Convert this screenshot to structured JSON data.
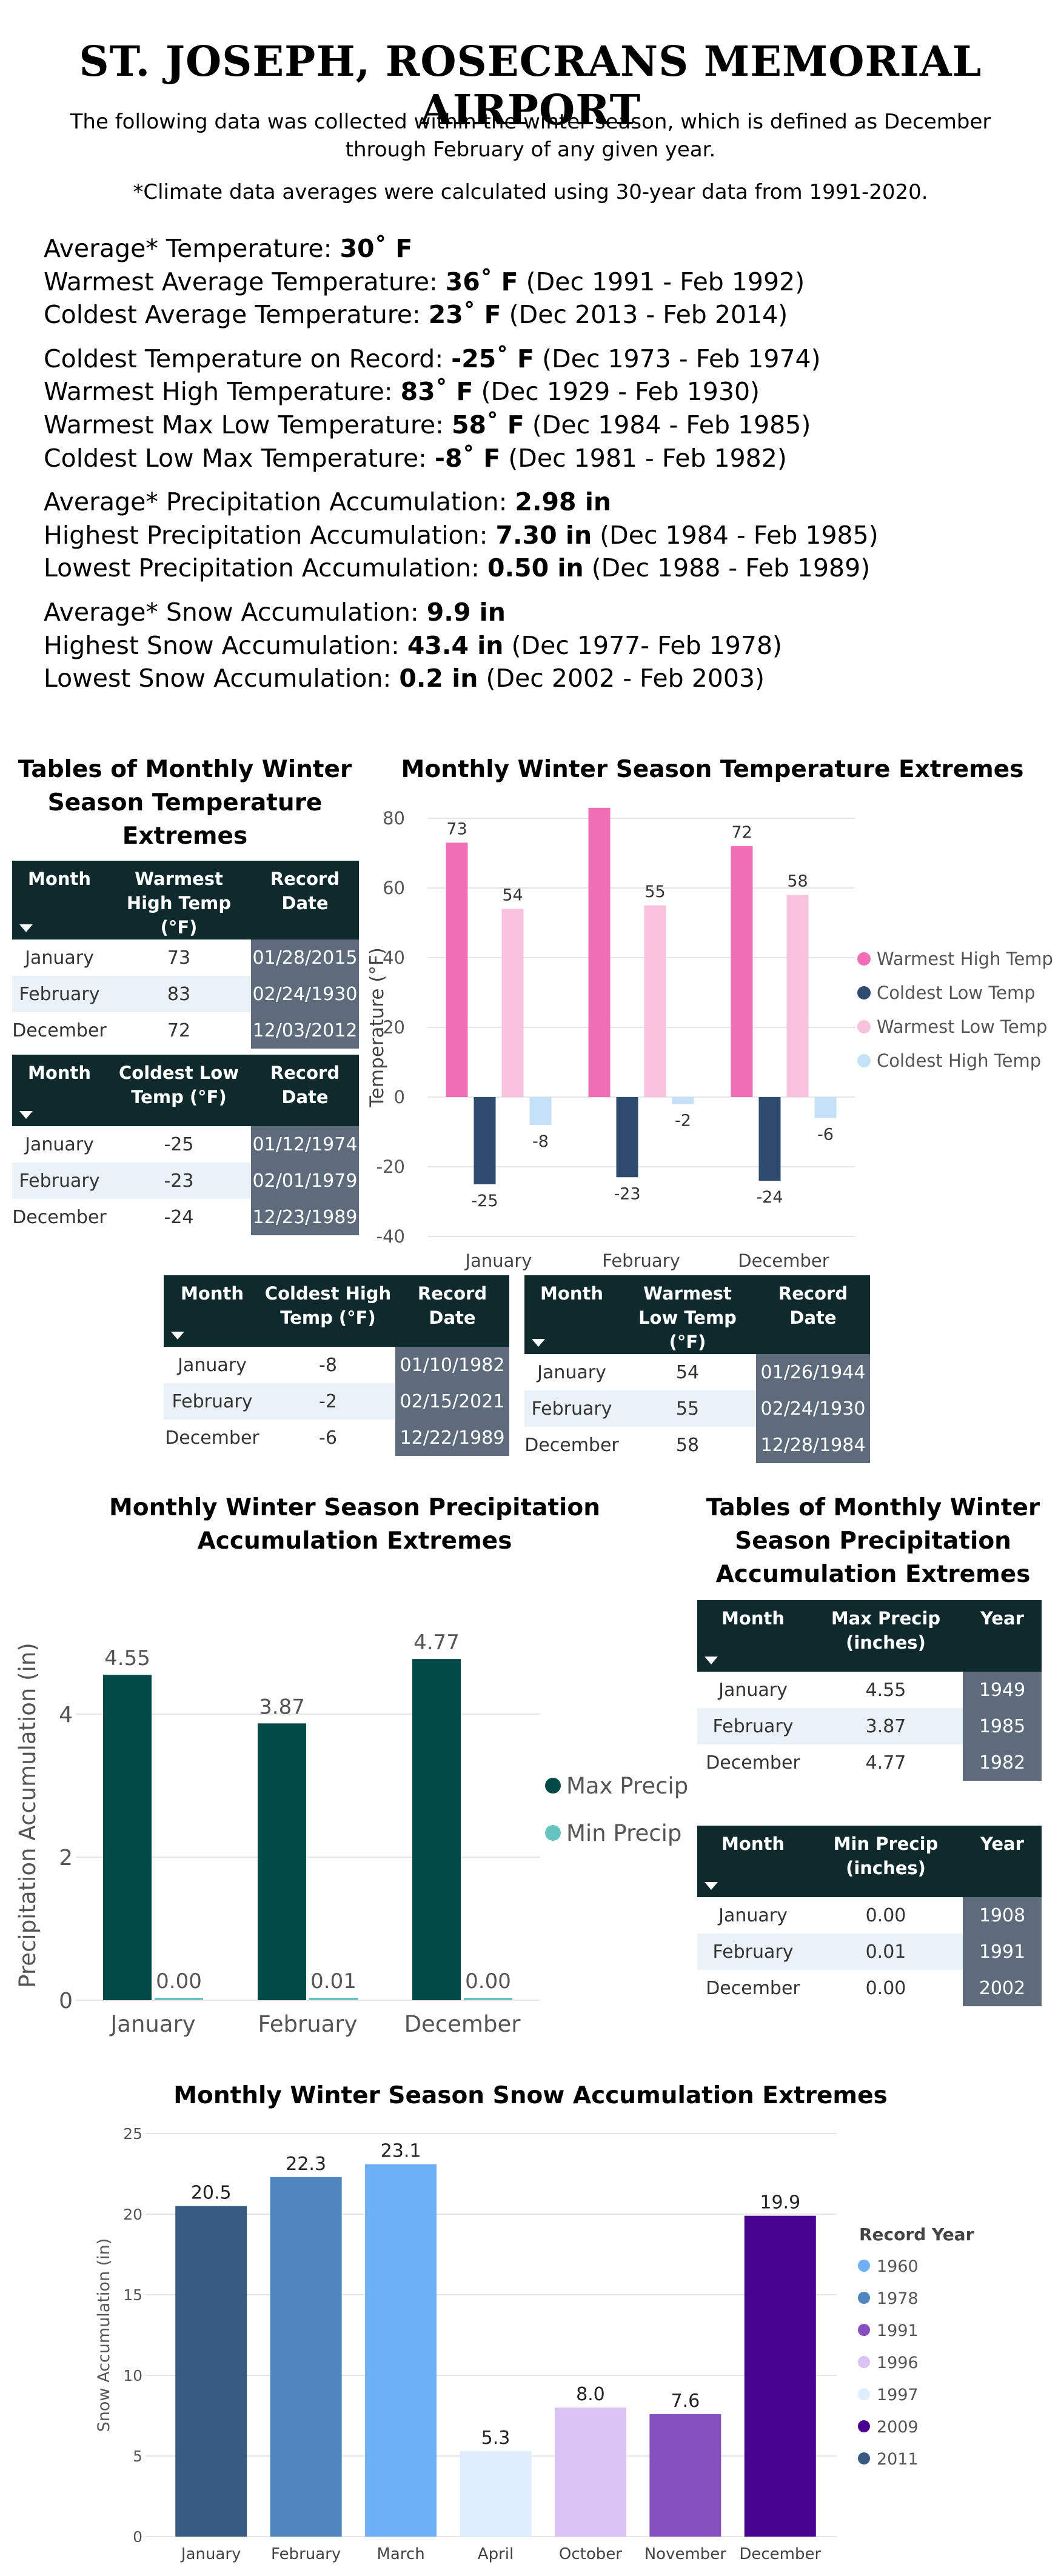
{
  "header": {
    "title": "ST. JOSEPH, ROSECRANS MEMORIAL AIRPORT",
    "intro_1": "The following data was collected within the winter season, which is defined as December through February of any given year.",
    "intro_2": "*Climate data averages were calculated using 30-year data from 1991-2020."
  },
  "stats": [
    {
      "label": "Average* Temperature: ",
      "value": "30˚ F",
      "note": ""
    },
    {
      "label": "Warmest Average Temperature: ",
      "value": "36˚ F",
      "note": " (Dec 1991 - Feb 1992)"
    },
    {
      "label": "Coldest Average Temperature: ",
      "value": "23˚ F",
      "note": " (Dec 2013 - Feb 2014)"
    },
    {
      "label": "Coldest Temperature on Record: ",
      "value": "-25˚ F",
      "note": " (Dec 1973 - Feb 1974)"
    },
    {
      "label": "Warmest High Temperature: ",
      "value": "83˚ F",
      "note": " (Dec 1929 - Feb 1930)"
    },
    {
      "label": "Warmest Max Low Temperature: ",
      "value": "58˚ F",
      "note": " (Dec 1984 - Feb 1985)"
    },
    {
      "label": "Coldest Low Max Temperature: ",
      "value": "-8˚ F",
      "note": " (Dec 1981 - Feb 1982)"
    },
    {
      "label": "Average* Precipitation Accumulation: ",
      "value": "2.98 in",
      "note": ""
    },
    {
      "label": "Highest Precipitation Accumulation:  ",
      "value": "7.30 in",
      "note": " (Dec 1984 - Feb 1985)"
    },
    {
      "label": "Lowest  Precipitation Accumulation:  ",
      "value": "0.50 in",
      "note": " (Dec 1988 - Feb 1989)"
    },
    {
      "label": "Average* Snow Accumulation: ",
      "value": "9.9 in",
      "note": ""
    },
    {
      "label": "Highest Snow Accumulation: ",
      "value": "43.4 in",
      "note": " (Dec 1977- Feb 1978)"
    },
    {
      "label": "Lowest Snow Accumulation: ",
      "value": "0.2 in",
      "note": " (Dec 2002 - Feb 2003)"
    }
  ],
  "temp_tables_title": "Tables of Monthly Winter Season Temperature Extremes",
  "temp_chart_title": "Monthly Winter Season Temperature Extremes",
  "precip_chart_title": "Monthly Winter Season Precipitation Accumulation Extremes",
  "precip_tables_title": "Tables of Monthly Winter Season Precipitation Accumulation Extremes",
  "snow_chart_title": "Monthly Winter Season Snow Accumulation Extremes",
  "tables": {
    "warmest_high": {
      "headers": [
        "Month",
        "Warmest High Temp (°F)",
        "Record Date"
      ],
      "rows": [
        [
          "January",
          "73",
          "01/28/2015"
        ],
        [
          "February",
          "83",
          "02/24/1930"
        ],
        [
          "December",
          "72",
          "12/03/2012"
        ]
      ]
    },
    "coldest_low": {
      "headers": [
        "Month",
        "Coldest Low Temp (°F)",
        "Record Date"
      ],
      "rows": [
        [
          "January",
          "-25",
          "01/12/1974"
        ],
        [
          "February",
          "-23",
          "02/01/1979"
        ],
        [
          "December",
          "-24",
          "12/23/1989"
        ]
      ]
    },
    "coldest_high": {
      "headers": [
        "Month",
        "Coldest High Temp (°F)",
        "Record Date"
      ],
      "rows": [
        [
          "January",
          "-8",
          "01/10/1982"
        ],
        [
          "February",
          "-2",
          "02/15/2021"
        ],
        [
          "December",
          "-6",
          "12/22/1989"
        ]
      ]
    },
    "warmest_low": {
      "headers": [
        "Month",
        "Warmest Low Temp (°F)",
        "Record Date"
      ],
      "rows": [
        [
          "January",
          "54",
          "01/26/1944"
        ],
        [
          "February",
          "55",
          "02/24/1930"
        ],
        [
          "December",
          "58",
          "12/28/1984"
        ]
      ]
    },
    "max_precip": {
      "headers": [
        "Month",
        "Max Precip (inches)",
        "Year"
      ],
      "rows": [
        [
          "January",
          "4.55",
          "1949"
        ],
        [
          "February",
          "3.87",
          "1985"
        ],
        [
          "December",
          "4.77",
          "1982"
        ]
      ]
    },
    "min_precip": {
      "headers": [
        "Month",
        "Min Precip (inches)",
        "Year"
      ],
      "rows": [
        [
          "January",
          "0.00",
          "1908"
        ],
        [
          "February",
          "0.01",
          "1991"
        ],
        [
          "December",
          "0.00",
          "2002"
        ]
      ]
    }
  },
  "chart_data": [
    {
      "type": "bar",
      "title": "Monthly Winter Season Temperature Extremes",
      "xlabel": "",
      "ylabel": "Temperature (°F)",
      "categories": [
        "January",
        "February",
        "December"
      ],
      "ylim": [
        -40,
        80
      ],
      "yticks": [
        -40,
        -20,
        0,
        20,
        40,
        60,
        80
      ],
      "grid": true,
      "legend_position": "right",
      "series": [
        {
          "name": "Warmest High Temp",
          "color": "#f06eb4",
          "values": [
            73,
            83,
            72
          ]
        },
        {
          "name": "Coldest Low Temp",
          "color": "#2f4b6e",
          "values": [
            -25,
            -23,
            -24
          ]
        },
        {
          "name": "Warmest Low Temp",
          "color": "#f8c2df",
          "values": [
            54,
            55,
            58
          ]
        },
        {
          "name": "Coldest High Temp",
          "color": "#c4e1f8",
          "values": [
            -8,
            -2,
            -6
          ]
        }
      ]
    },
    {
      "type": "bar",
      "title": "Monthly Winter Season Precipitation Accumulation Extremes",
      "xlabel": "",
      "ylabel": "Precipitation Accumulation (in)",
      "categories": [
        "January",
        "February",
        "December"
      ],
      "ylim": [
        0,
        5
      ],
      "yticks": [
        0,
        2,
        4
      ],
      "grid": true,
      "legend_position": "right",
      "series": [
        {
          "name": "Max Precip",
          "color": "#014a45",
          "values": [
            4.55,
            3.87,
            4.77
          ],
          "labels": [
            "4.55",
            "3.87",
            "4.77"
          ]
        },
        {
          "name": "Min Precip",
          "color": "#67c3bd",
          "values": [
            0.0,
            0.01,
            0.0
          ],
          "labels": [
            "0.00",
            "0.01",
            "0.00"
          ]
        }
      ]
    },
    {
      "type": "bar",
      "title": "Monthly Winter Season Snow Accumulation Extremes",
      "xlabel": "",
      "ylabel": "Snow Accumulation (in)",
      "categories": [
        "January",
        "February",
        "March",
        "April",
        "October",
        "November",
        "December"
      ],
      "values": [
        20.5,
        22.3,
        23.1,
        5.3,
        8.0,
        7.6,
        19.9
      ],
      "value_labels": [
        "20.5",
        "22.3",
        "23.1",
        "5.3",
        "8.0",
        "7.6",
        "19.9"
      ],
      "bar_colors": [
        "#375a80",
        "#4f86bf",
        "#6eb0f7",
        "#deeefd",
        "#d9c3f4",
        "#8650c0",
        "#47038e"
      ],
      "ylim": [
        0,
        25
      ],
      "yticks": [
        0,
        5,
        10,
        15,
        20,
        25
      ],
      "grid": true,
      "legend_title": "Record Year",
      "legend_position": "right",
      "legend": [
        {
          "name": "1960",
          "color": "#6eb0f7"
        },
        {
          "name": "1978",
          "color": "#4f86bf"
        },
        {
          "name": "1991",
          "color": "#8650c0"
        },
        {
          "name": "1996",
          "color": "#d9c3f4"
        },
        {
          "name": "1997",
          "color": "#deeefd"
        },
        {
          "name": "2009",
          "color": "#47038e"
        },
        {
          "name": "2011",
          "color": "#375a80"
        }
      ]
    }
  ]
}
